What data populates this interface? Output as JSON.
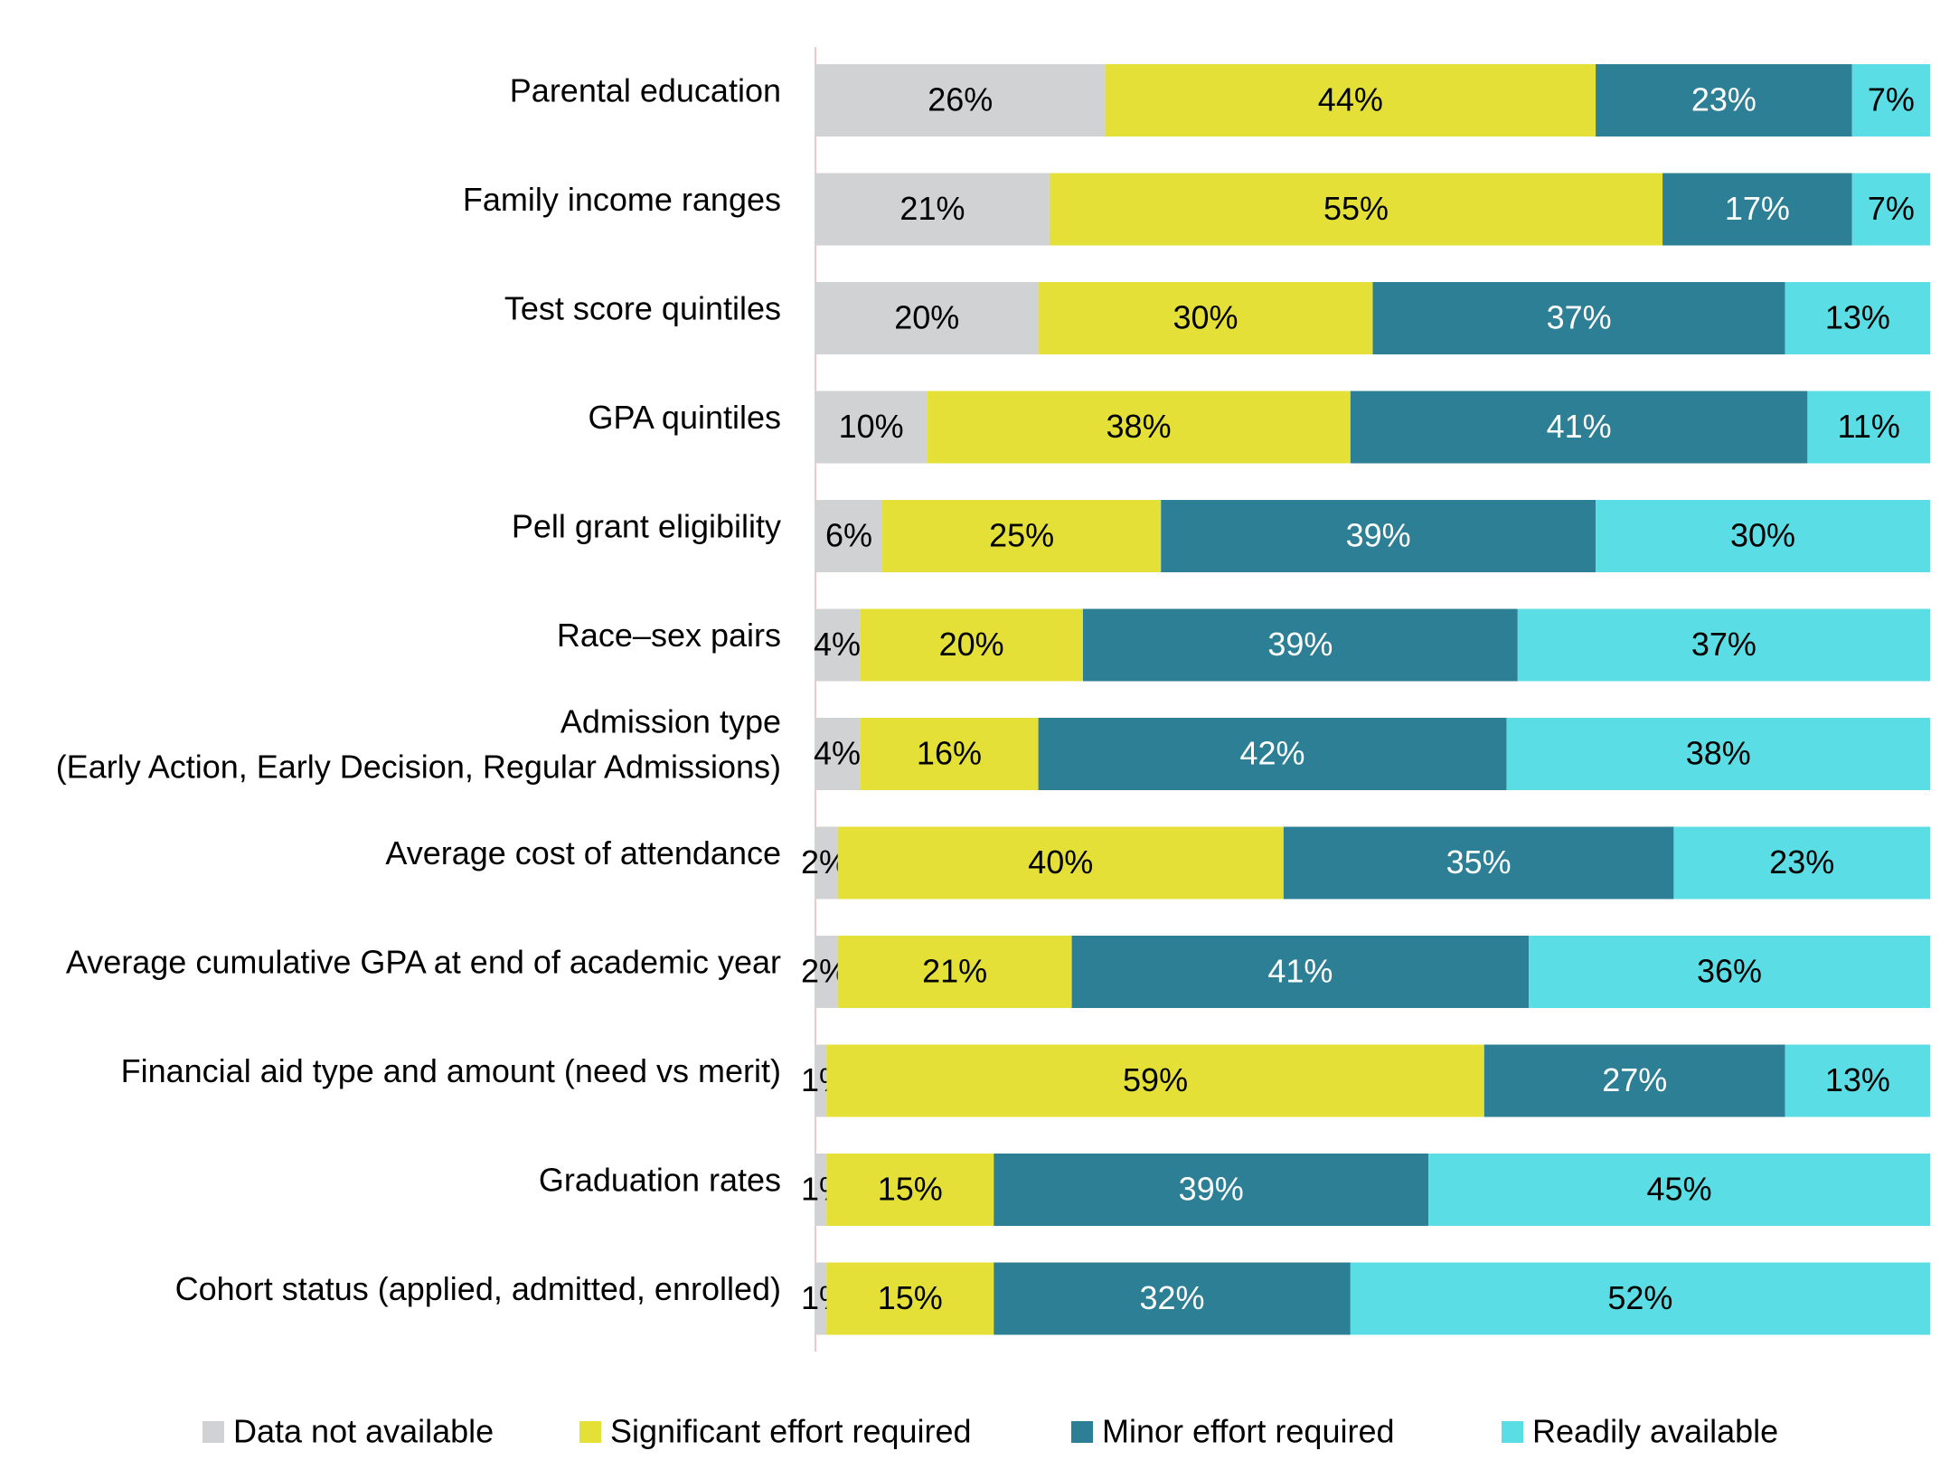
{
  "chart_data": {
    "type": "bar",
    "orientation": "horizontal",
    "stacked": true,
    "percent_stacked": true,
    "title": "",
    "xlabel": "",
    "ylabel": "",
    "xlim": [
      0,
      100
    ],
    "grid": false,
    "legend_position": "bottom",
    "categories": [
      [
        "Parental education"
      ],
      [
        "Family income ranges"
      ],
      [
        "Test score quintiles"
      ],
      [
        "GPA quintiles"
      ],
      [
        "Pell grant eligibility"
      ],
      [
        "Race–sex pairs"
      ],
      [
        "Admission type",
        "(Early Action, Early Decision, Regular Admissions)"
      ],
      [
        "Average cost of attendance"
      ],
      [
        "Average cumulative GPA at end of academic year"
      ],
      [
        "Financial aid type and amount (need vs merit)"
      ],
      [
        "Graduation rates"
      ],
      [
        "Cohort status (applied, admitted, enrolled)"
      ]
    ],
    "series": [
      {
        "name": "Data not available",
        "color": "#d0d2d3",
        "label_color": "#000000",
        "values": [
          26,
          21,
          20,
          10,
          6,
          4,
          4,
          2,
          2,
          1,
          1,
          1
        ]
      },
      {
        "name": "Significant effort required",
        "color": "#e4e037",
        "label_color": "#000000",
        "values": [
          44,
          55,
          30,
          38,
          25,
          20,
          16,
          40,
          21,
          59,
          15,
          15
        ]
      },
      {
        "name": "Minor effort required",
        "color": "#2c7f94",
        "label_color": "#ffffff",
        "values": [
          23,
          17,
          37,
          41,
          39,
          39,
          42,
          35,
          41,
          27,
          39,
          32
        ]
      },
      {
        "name": "Readily available",
        "color": "#5adde4",
        "label_color": "#000000",
        "values": [
          7,
          7,
          13,
          11,
          30,
          37,
          38,
          23,
          36,
          13,
          45,
          52
        ]
      }
    ],
    "value_suffix": "%",
    "axis_line_color": "#f4c6c6"
  }
}
